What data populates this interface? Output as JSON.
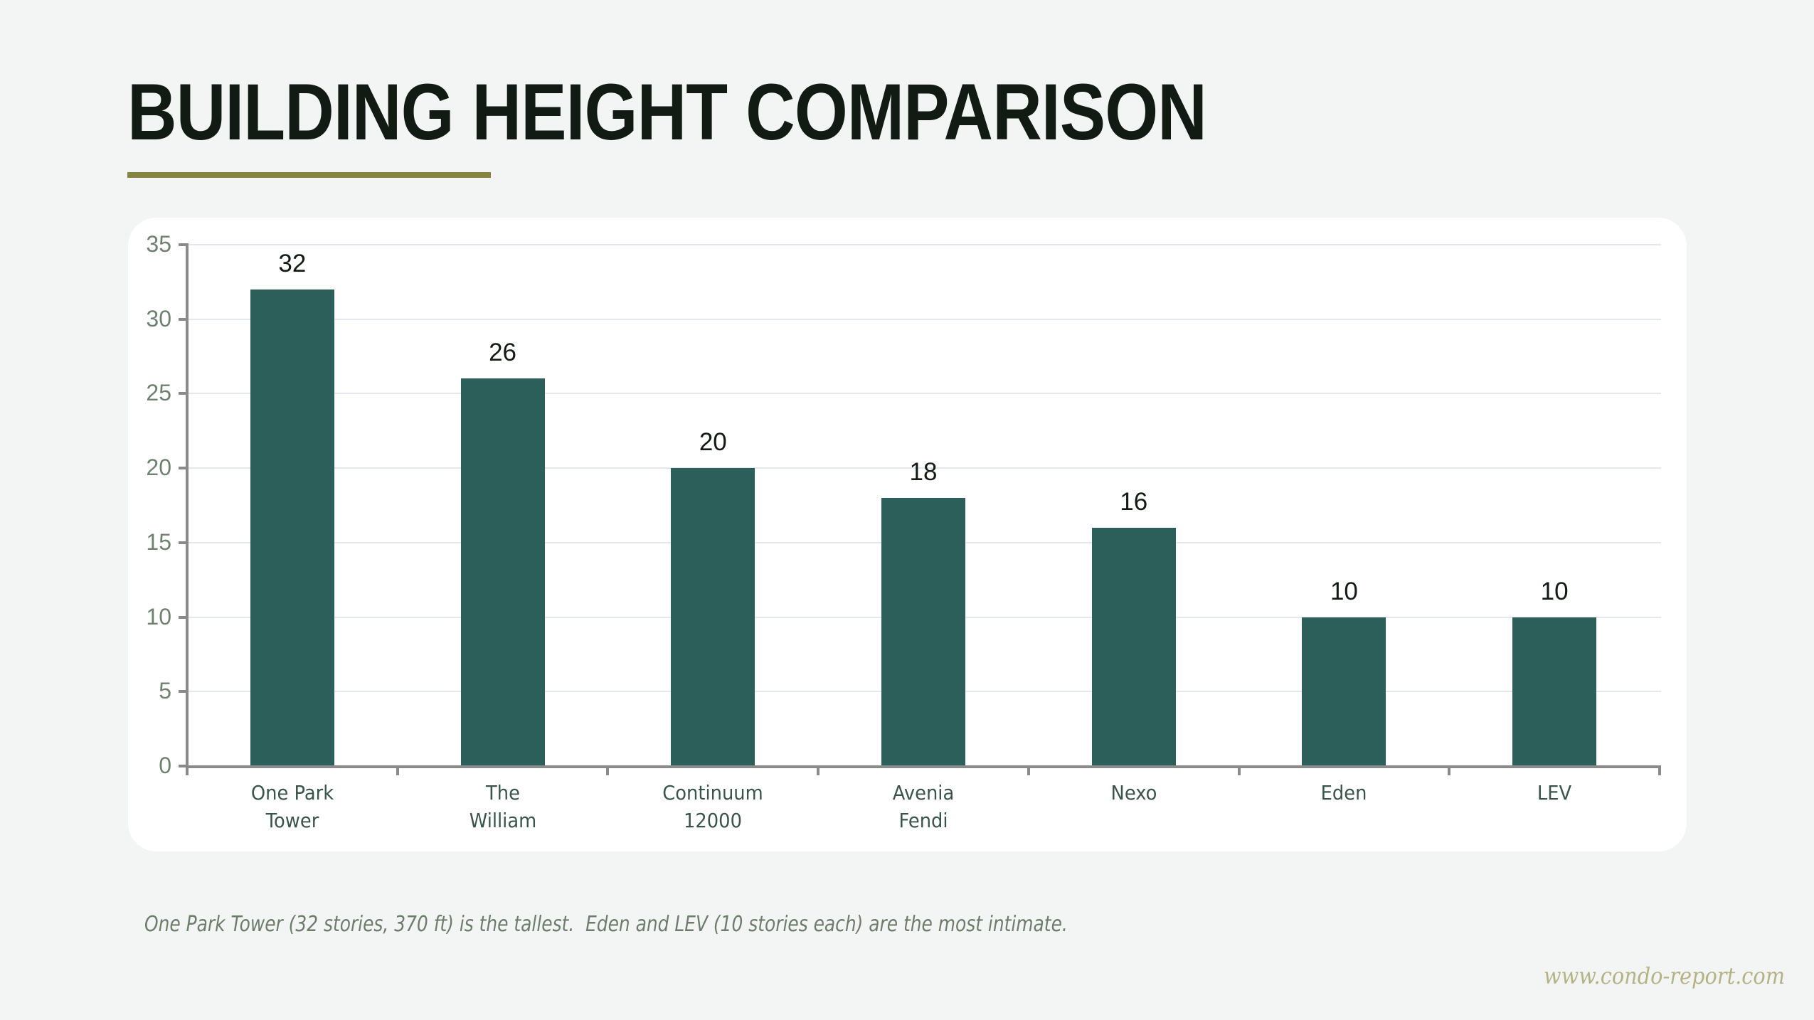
{
  "header": {
    "title": "BUILDING HEIGHT COMPARISON",
    "accent_color": "#878340"
  },
  "caption": "One Park Tower (32 stories, 370 ft) is the tallest.  Eden and LEV (10 stories each) are the most intimate.",
  "watermark": "www.condo-report.com",
  "colors": {
    "background": "#f3f5f4",
    "card": "#ffffff",
    "bar": "#2d5f5a",
    "title": "#111b14",
    "axis": "#8a8a8a",
    "gridline": "#e4e8ee"
  },
  "chart_data": {
    "type": "bar",
    "title": "BUILDING HEIGHT COMPARISON",
    "xlabel": "",
    "ylabel": "",
    "categories": [
      [
        "One Park",
        "Tower"
      ],
      [
        "The",
        "William"
      ],
      [
        "Continuum",
        "12000"
      ],
      [
        "Avenia",
        "Fendi"
      ],
      [
        "Nexo"
      ],
      [
        "Eden"
      ],
      [
        "LEV"
      ]
    ],
    "category_names": [
      "One Park Tower",
      "The William",
      "Continuum 12000",
      "Avenia Fendi",
      "Nexo",
      "Eden",
      "LEV"
    ],
    "values": [
      32,
      26,
      20,
      18,
      16,
      10,
      10
    ],
    "ylim": [
      0,
      35
    ],
    "yticks": [
      0,
      5,
      10,
      15,
      20,
      25,
      30,
      35
    ],
    "grid": true,
    "legend": null,
    "data_labels": true
  }
}
